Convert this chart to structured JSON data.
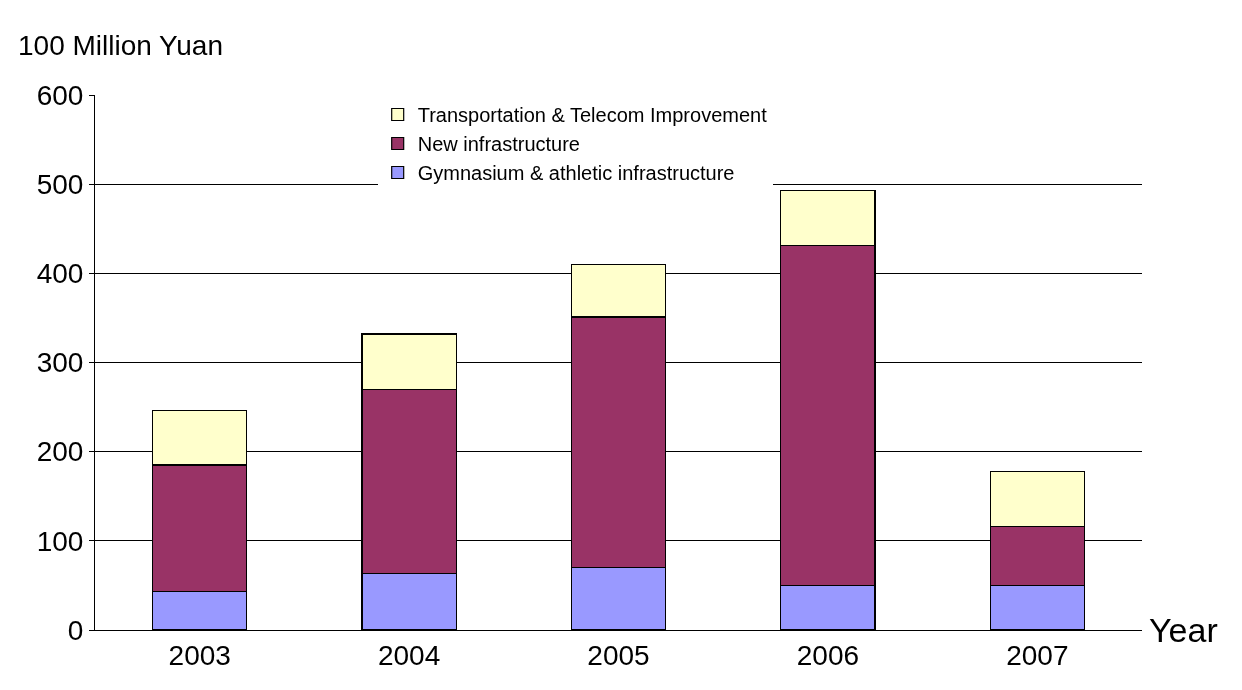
{
  "chart_data": {
    "type": "bar",
    "stacked": true,
    "xlabel": "Year",
    "ylabel": "100 Million Yuan",
    "categories": [
      "2003",
      "2004",
      "2005",
      "2006",
      "2007"
    ],
    "series": [
      {
        "name": "Gymnasium & athletic infrastructure",
        "color": "#9999ff",
        "values": [
          43,
          63,
          70,
          50,
          50
        ]
      },
      {
        "name": "New infrastructure",
        "color": "#993366",
        "values": [
          142,
          207,
          281,
          381,
          66
        ]
      },
      {
        "name": "Transportation & Telecom Improvement",
        "color": "#ffffcc",
        "values": [
          61,
          62,
          59,
          62,
          62
        ]
      }
    ],
    "ylim": [
      0,
      600
    ],
    "yticks": [
      0,
      100,
      200,
      300,
      400,
      500,
      600
    ],
    "grid": "y",
    "legend": "top"
  }
}
